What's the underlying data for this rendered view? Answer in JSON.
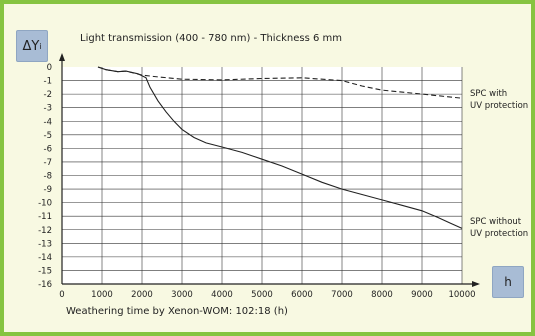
{
  "chart_data": {
    "type": "line",
    "title": "Light transmission (400 - 780 nm) - Thickness 6 mm",
    "xlabel": "Weathering time by Xenon-WOM: 102:18 (h)",
    "x_unit": "h",
    "ylabel_main": "ΔY",
    "ylabel_sub": "i",
    "xlim": [
      0,
      10000
    ],
    "ylim": [
      -16,
      0
    ],
    "x_ticks": [
      "0",
      "1000",
      "2000",
      "3000",
      "4000",
      "5000",
      "6000",
      "7000",
      "8000",
      "9000",
      "10000"
    ],
    "y_ticks": [
      "0",
      "-1",
      "-2",
      "-3",
      "-4",
      "-5",
      "-6",
      "-7",
      "-8",
      "-9",
      "-10",
      "-11",
      "-12",
      "-13",
      "-14",
      "-15",
      "-16"
    ],
    "grid": true,
    "series": [
      {
        "name_line1": "SPC with",
        "name_line2": "UV protection",
        "style": "dashed",
        "points": [
          [
            900,
            0
          ],
          [
            1100,
            -0.2
          ],
          [
            1400,
            -0.35
          ],
          [
            1600,
            -0.3
          ],
          [
            2000,
            -0.6
          ],
          [
            2300,
            -0.7
          ],
          [
            3000,
            -0.9
          ],
          [
            4000,
            -0.95
          ],
          [
            5000,
            -0.85
          ],
          [
            6000,
            -0.8
          ],
          [
            7000,
            -1.0
          ],
          [
            7500,
            -1.4
          ],
          [
            8000,
            -1.7
          ],
          [
            9000,
            -2.0
          ],
          [
            10000,
            -2.3
          ]
        ]
      },
      {
        "name_line1": "SPC without",
        "name_line2": "UV protection",
        "style": "solid",
        "points": [
          [
            900,
            0
          ],
          [
            1100,
            -0.2
          ],
          [
            1400,
            -0.35
          ],
          [
            1600,
            -0.3
          ],
          [
            1900,
            -0.5
          ],
          [
            2100,
            -0.8
          ],
          [
            2200,
            -1.5
          ],
          [
            2400,
            -2.5
          ],
          [
            2600,
            -3.3
          ],
          [
            2800,
            -4.0
          ],
          [
            3000,
            -4.6
          ],
          [
            3300,
            -5.2
          ],
          [
            3600,
            -5.6
          ],
          [
            4000,
            -5.9
          ],
          [
            4500,
            -6.3
          ],
          [
            5000,
            -6.8
          ],
          [
            5500,
            -7.3
          ],
          [
            6000,
            -7.9
          ],
          [
            6500,
            -8.5
          ],
          [
            7000,
            -9.0
          ],
          [
            7500,
            -9.4
          ],
          [
            8000,
            -9.8
          ],
          [
            8500,
            -10.2
          ],
          [
            9000,
            -10.6
          ],
          [
            9400,
            -11.1
          ],
          [
            9700,
            -11.5
          ],
          [
            10000,
            -11.9
          ]
        ]
      }
    ]
  }
}
